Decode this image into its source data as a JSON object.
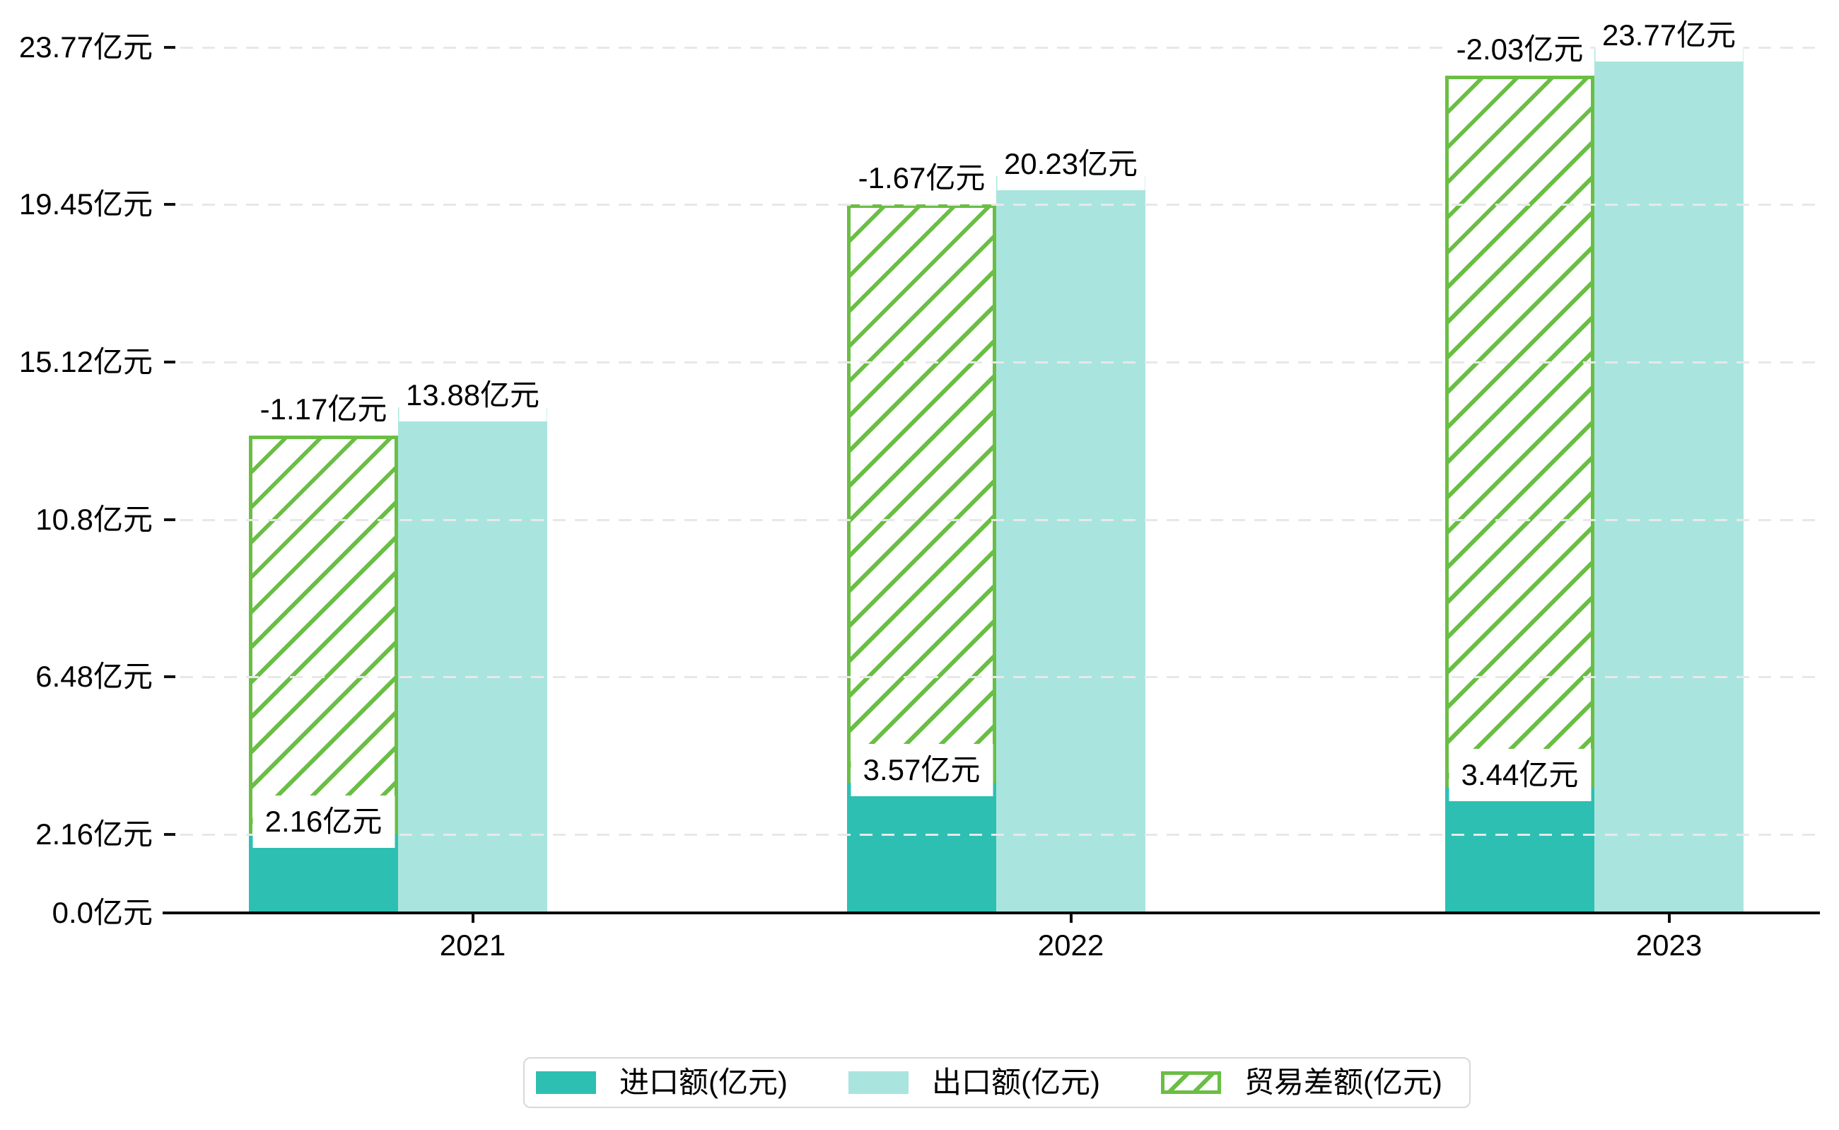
{
  "chart_data": {
    "type": "bar",
    "title": "",
    "categories": [
      "2021",
      "2022",
      "2023"
    ],
    "unit": "亿元",
    "series": [
      {
        "name": "进口额(亿元)",
        "role": "import",
        "values": [
          2.16,
          3.57,
          3.44
        ],
        "labels": [
          "2.16亿元",
          "3.57亿元",
          "3.44亿元"
        ],
        "color": "#2dc0b2",
        "style": "solid"
      },
      {
        "name": "出口额(亿元)",
        "role": "export",
        "values": [
          13.88,
          20.23,
          23.77
        ],
        "labels": [
          "13.88亿元",
          "20.23亿元",
          "23.77亿元"
        ],
        "color": "#a9e5de",
        "style": "solid"
      },
      {
        "name": "贸易差额(亿元)",
        "role": "balance",
        "values": [
          -1.17,
          -1.67,
          -2.03
        ],
        "labels": [
          "-1.17亿元",
          "-1.67亿元",
          "-2.03亿元"
        ],
        "color": "#6abe44",
        "style": "hatched",
        "note": "drawn as hatched segment stacked between import top and export top"
      }
    ],
    "y_axis": {
      "tick_values": [
        0,
        2.16,
        6.48,
        10.8,
        15.12,
        19.45,
        23.77
      ],
      "tick_labels": [
        "0.0亿元",
        "2.16亿元",
        "6.48亿元",
        "10.8亿元",
        "15.12亿元",
        "19.45亿元",
        "23.77亿元"
      ],
      "range": [
        0,
        23.77
      ],
      "grid": "dashed"
    },
    "legend": {
      "position": "bottom",
      "items": [
        "进口额(亿元)",
        "出口额(亿元)",
        "贸易差额(亿元)"
      ]
    },
    "colors": {
      "import": "#2dc0b2",
      "export": "#a9e5de",
      "balance_hatch": "#6abe44",
      "grid": "#e8e8e8",
      "axis": "#0a0a0a",
      "text": "#000000",
      "label_bg": "#ffffff",
      "legend_border": "#d8d8d8"
    }
  }
}
